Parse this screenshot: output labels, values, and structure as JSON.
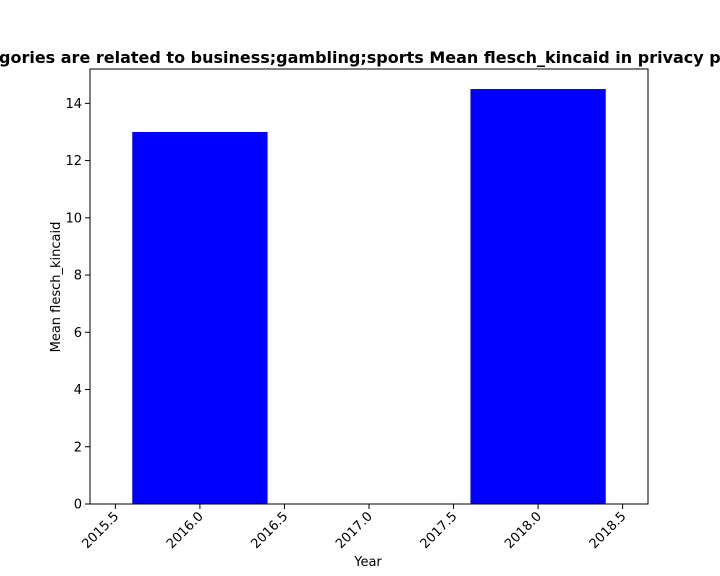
{
  "chart_data": {
    "type": "bar",
    "title": "Categories are related to business;gambling;sports Mean flesch_kincaid in privacy policies",
    "xlabel": "Year",
    "ylabel": "Mean flesch_kincaid",
    "x": [
      2016,
      2018
    ],
    "values": [
      13.0,
      14.5
    ],
    "bar_width": 0.8,
    "xlim": [
      2015.5,
      2018.5
    ],
    "ylim": [
      0,
      15.2
    ],
    "xticks": [
      "2015.5",
      "2016.0",
      "2016.5",
      "2017.0",
      "2017.5",
      "2018.0",
      "2018.5"
    ],
    "yticks": [
      "0",
      "2",
      "4",
      "6",
      "8",
      "10",
      "12",
      "14"
    ],
    "tick_rotation_x": 45,
    "grid": false,
    "legend": "none",
    "bar_color": "#0000ff"
  }
}
